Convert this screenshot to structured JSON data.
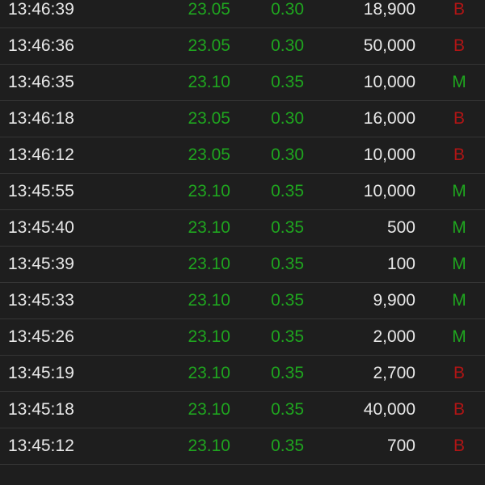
{
  "colors": {
    "background": "#1e1e1e",
    "up": "#1fa51f",
    "buy": "#b01515",
    "sell_m": "#1fa51f",
    "text": "#e8e8e8"
  },
  "trades": [
    {
      "time": "13:46:39",
      "price": "23.05",
      "change": "0.30",
      "volume": "18,900",
      "side": "B"
    },
    {
      "time": "13:46:36",
      "price": "23.05",
      "change": "0.30",
      "volume": "50,000",
      "side": "B"
    },
    {
      "time": "13:46:35",
      "price": "23.10",
      "change": "0.35",
      "volume": "10,000",
      "side": "M"
    },
    {
      "time": "13:46:18",
      "price": "23.05",
      "change": "0.30",
      "volume": "16,000",
      "side": "B"
    },
    {
      "time": "13:46:12",
      "price": "23.05",
      "change": "0.30",
      "volume": "10,000",
      "side": "B"
    },
    {
      "time": "13:45:55",
      "price": "23.10",
      "change": "0.35",
      "volume": "10,000",
      "side": "M"
    },
    {
      "time": "13:45:40",
      "price": "23.10",
      "change": "0.35",
      "volume": "500",
      "side": "M"
    },
    {
      "time": "13:45:39",
      "price": "23.10",
      "change": "0.35",
      "volume": "100",
      "side": "M"
    },
    {
      "time": "13:45:33",
      "price": "23.10",
      "change": "0.35",
      "volume": "9,900",
      "side": "M"
    },
    {
      "time": "13:45:26",
      "price": "23.10",
      "change": "0.35",
      "volume": "2,000",
      "side": "M"
    },
    {
      "time": "13:45:19",
      "price": "23.10",
      "change": "0.35",
      "volume": "2,700",
      "side": "B"
    },
    {
      "time": "13:45:18",
      "price": "23.10",
      "change": "0.35",
      "volume": "40,000",
      "side": "B"
    },
    {
      "time": "13:45:12",
      "price": "23.10",
      "change": "0.35",
      "volume": "700",
      "side": "B"
    }
  ]
}
